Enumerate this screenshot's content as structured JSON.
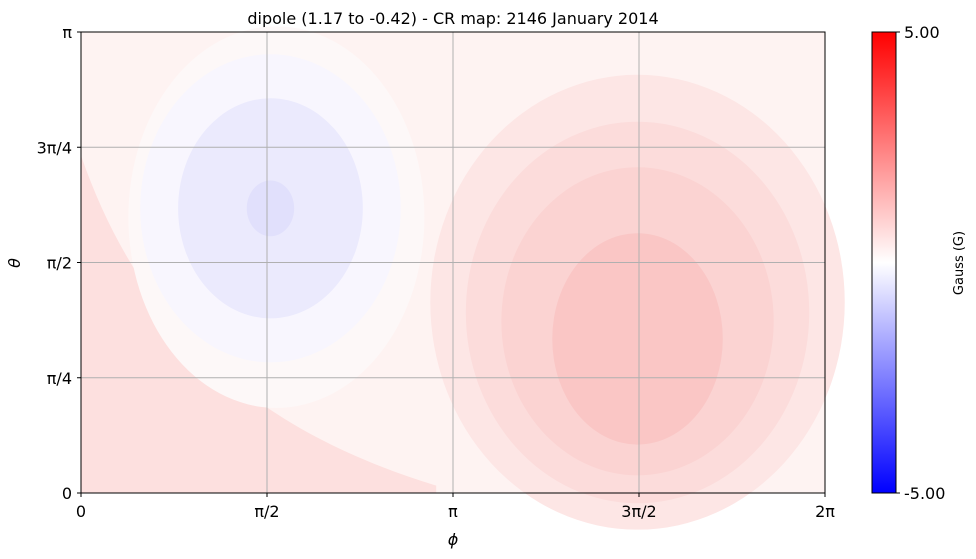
{
  "chart_data": {
    "type": "heatmap",
    "title": "dipole (1.17 to -0.42) - CR map: 2146 January 2014",
    "xlabel": "ϕ",
    "ylabel": "θ",
    "xlim": [
      0,
      6.2832
    ],
    "ylim": [
      0,
      3.1416
    ],
    "x_ticks": [
      {
        "value": 0,
        "label": "0"
      },
      {
        "value": 1.5708,
        "label": "π/2"
      },
      {
        "value": 3.1416,
        "label": "π"
      },
      {
        "value": 4.7124,
        "label": "3π/2"
      },
      {
        "value": 6.2832,
        "label": "2π"
      }
    ],
    "y_ticks": [
      {
        "value": 0,
        "label": "0"
      },
      {
        "value": 0.7854,
        "label": "π/4"
      },
      {
        "value": 1.5708,
        "label": "π/2"
      },
      {
        "value": 2.3562,
        "label": "3π/4"
      },
      {
        "value": 3.1416,
        "label": "π"
      }
    ],
    "grid": true,
    "field": {
      "description": "dipole contour field",
      "negative_center": {
        "phi": 1.65,
        "theta": 1.88,
        "value": -0.42
      },
      "positive_center": {
        "phi": 4.7,
        "theta": 1.05,
        "value": 1.17
      },
      "background_value": 0.15
    },
    "colorbar": {
      "label": "Gauss (G)",
      "max_label": "5.00",
      "min_label": "-5.00",
      "vmin": -5.0,
      "vmax": 5.0,
      "colors": [
        "#0000ff",
        "#ffffff",
        "#ff0000"
      ]
    }
  }
}
